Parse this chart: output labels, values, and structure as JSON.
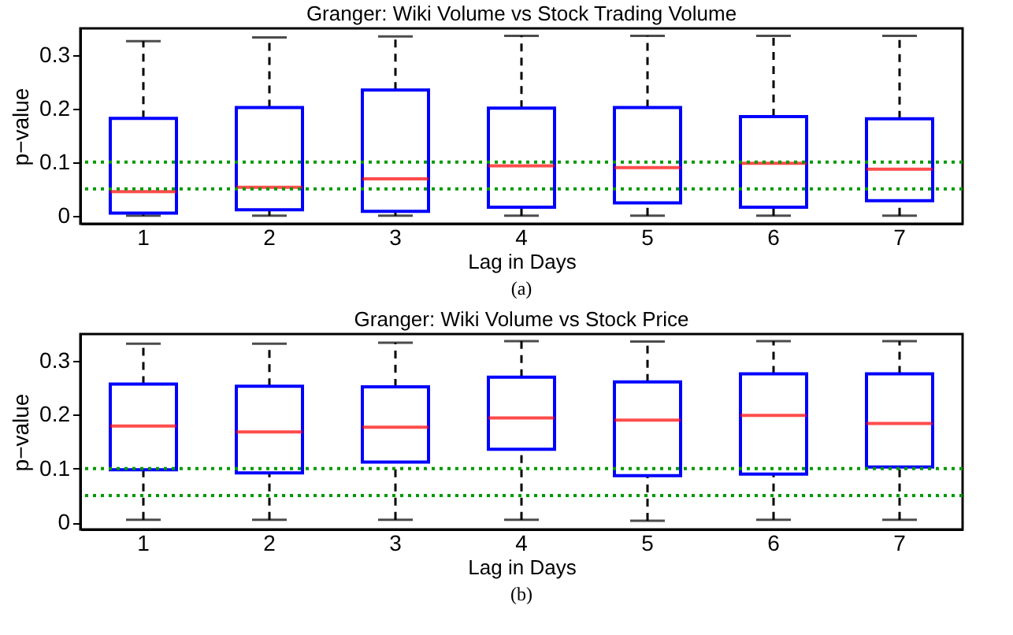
{
  "chart_data": [
    {
      "type": "box",
      "title": "Granger: Wiki Volume vs Stock Trading Volume",
      "xlabel": "Lag in Days",
      "ylabel": "p−value",
      "annotations": [
        "(a)"
      ],
      "categories": [
        "1",
        "2",
        "3",
        "4",
        "5",
        "6",
        "7"
      ],
      "boxes": [
        {
          "low": 0.0,
          "q1": 0.005,
          "median": 0.045,
          "q3": 0.182,
          "high": 0.326
        },
        {
          "low": 0.0,
          "q1": 0.011,
          "median": 0.053,
          "q3": 0.202,
          "high": 0.333
        },
        {
          "low": 0.0,
          "q1": 0.008,
          "median": 0.069,
          "q3": 0.235,
          "high": 0.335
        },
        {
          "low": 0.0,
          "q1": 0.016,
          "median": 0.093,
          "q3": 0.201,
          "high": 0.336
        },
        {
          "low": 0.0,
          "q1": 0.024,
          "median": 0.09,
          "q3": 0.202,
          "high": 0.336
        },
        {
          "low": 0.0,
          "q1": 0.016,
          "median": 0.098,
          "q3": 0.185,
          "high": 0.336
        },
        {
          "low": 0.0,
          "q1": 0.028,
          "median": 0.087,
          "q3": 0.181,
          "high": 0.336
        }
      ],
      "ylim": [
        -0.015,
        0.35
      ],
      "yticks": [
        0,
        0.1,
        0.2,
        0.3
      ],
      "grid": false,
      "ref_lines": [
        {
          "axis": "y",
          "value": 0.1,
          "color": "#009900",
          "line_style": "dotted"
        },
        {
          "axis": "y",
          "value": 0.05,
          "color": "#009900",
          "line_style": "dotted"
        }
      ]
    },
    {
      "type": "box",
      "title": "Granger: Wiki Volume vs Stock Price",
      "xlabel": "Lag in Days",
      "ylabel": "p−value",
      "annotations": [
        "(b)"
      ],
      "categories": [
        "1",
        "2",
        "3",
        "4",
        "5",
        "6",
        "7"
      ],
      "boxes": [
        {
          "low": 0.005,
          "q1": 0.098,
          "median": 0.179,
          "q3": 0.257,
          "high": 0.332
        },
        {
          "low": 0.005,
          "q1": 0.092,
          "median": 0.168,
          "q3": 0.253,
          "high": 0.332
        },
        {
          "low": 0.005,
          "q1": 0.112,
          "median": 0.177,
          "q3": 0.252,
          "high": 0.334
        },
        {
          "low": 0.005,
          "q1": 0.136,
          "median": 0.194,
          "q3": 0.27,
          "high": 0.337
        },
        {
          "low": 0.003,
          "q1": 0.087,
          "median": 0.19,
          "q3": 0.261,
          "high": 0.336
        },
        {
          "low": 0.005,
          "q1": 0.09,
          "median": 0.199,
          "q3": 0.276,
          "high": 0.337
        },
        {
          "low": 0.005,
          "q1": 0.103,
          "median": 0.184,
          "q3": 0.276,
          "high": 0.337
        }
      ],
      "ylim": [
        -0.013,
        0.35
      ],
      "yticks": [
        0,
        0.1,
        0.2,
        0.3
      ],
      "grid": false,
      "ref_lines": [
        {
          "axis": "y",
          "value": 0.1,
          "color": "#009900",
          "line_style": "dotted"
        },
        {
          "axis": "y",
          "value": 0.05,
          "color": "#009900",
          "line_style": "dotted"
        }
      ]
    }
  ]
}
